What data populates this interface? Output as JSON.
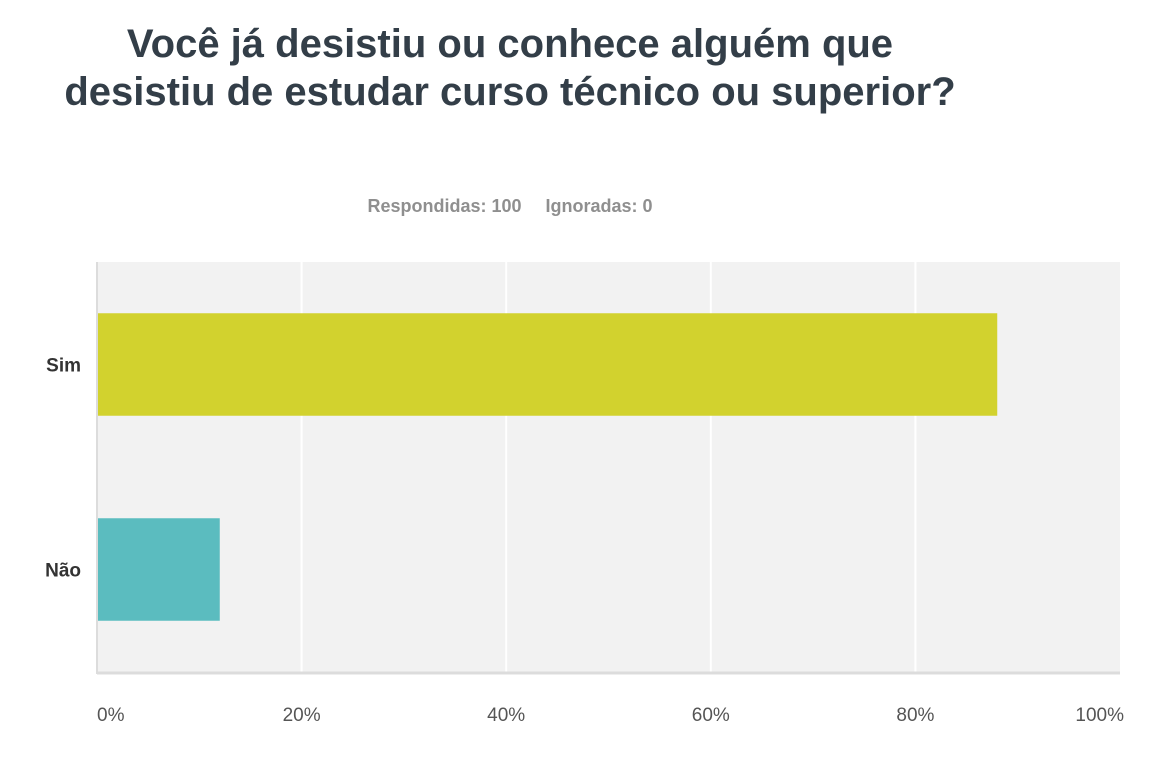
{
  "title": "Você já desistiu ou conhece alguém que desistiu de estudar curso técnico ou superior?",
  "summary": {
    "answered_label": "Respondidas: 100",
    "skipped_label": "Ignoradas: 0"
  },
  "chart_data": {
    "type": "bar",
    "orientation": "horizontal",
    "categories": [
      "Sim",
      "Não"
    ],
    "values": [
      88,
      12
    ],
    "colors": [
      "#d2d22e",
      "#5bbcbf"
    ],
    "xlim": [
      0,
      100
    ],
    "xticks": [
      "0%",
      "20%",
      "40%",
      "60%",
      "80%",
      "100%"
    ],
    "grid": true,
    "legend": "none",
    "plot_background": "#f2f2f2",
    "grid_color": "#ffffff"
  }
}
